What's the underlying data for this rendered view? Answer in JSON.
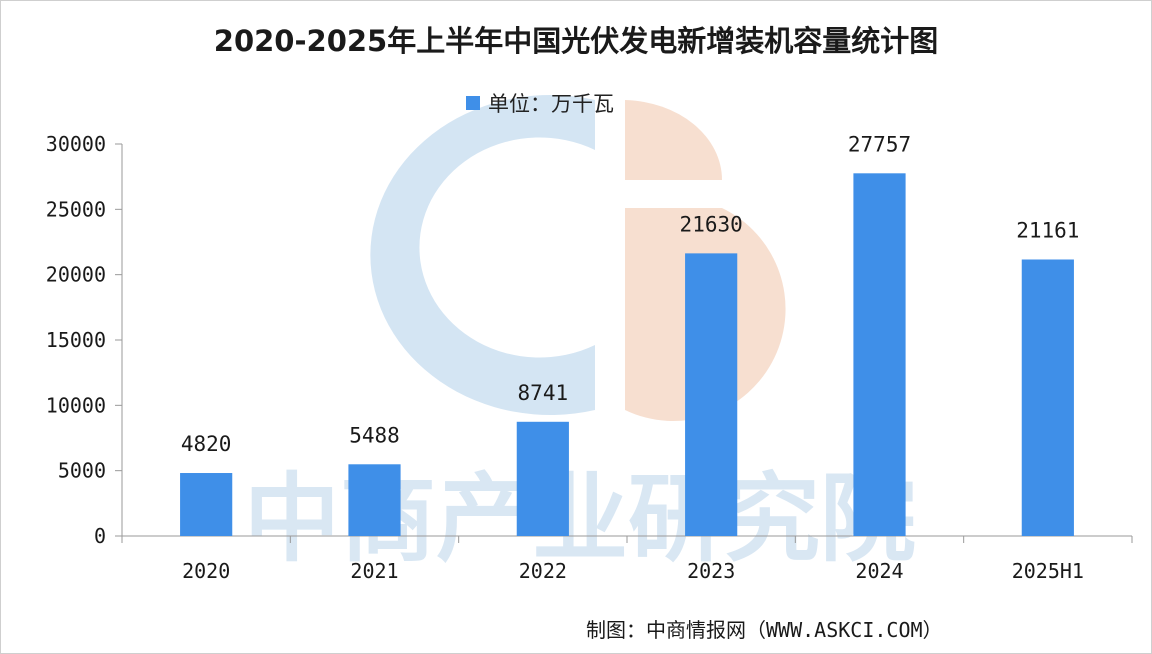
{
  "chart_data": {
    "type": "bar",
    "title": "2020-2025年上半年中国光伏发电新增装机容量统计图",
    "legend": [
      {
        "name": "单位：万千瓦",
        "color": "#3f8fe8"
      }
    ],
    "legend_position": "top-center",
    "categories": [
      "2020",
      "2021",
      "2022",
      "2023",
      "2024",
      "2025H1"
    ],
    "series": [
      {
        "name": "单位：万千瓦",
        "values": [
          4820,
          5488,
          8741,
          21630,
          27757,
          21161
        ]
      }
    ],
    "data_labels": [
      "4820",
      "5488",
      "8741",
      "21630",
      "27757",
      "21161"
    ],
    "y_ticks": [
      0,
      5000,
      10000,
      15000,
      20000,
      25000,
      30000
    ],
    "ylim": [
      0,
      30000
    ],
    "xlabel": "",
    "ylabel": "",
    "grid": false
  },
  "watermark": {
    "text": "中商产业研究院"
  },
  "source": "制图：中商情报网（WWW.ASKCI.COM）",
  "colors": {
    "bar": "#3f8fe8",
    "axis": "#9a9a9a",
    "watermark_blue": "#c9def0",
    "watermark_orange": "#f6d9c8"
  }
}
